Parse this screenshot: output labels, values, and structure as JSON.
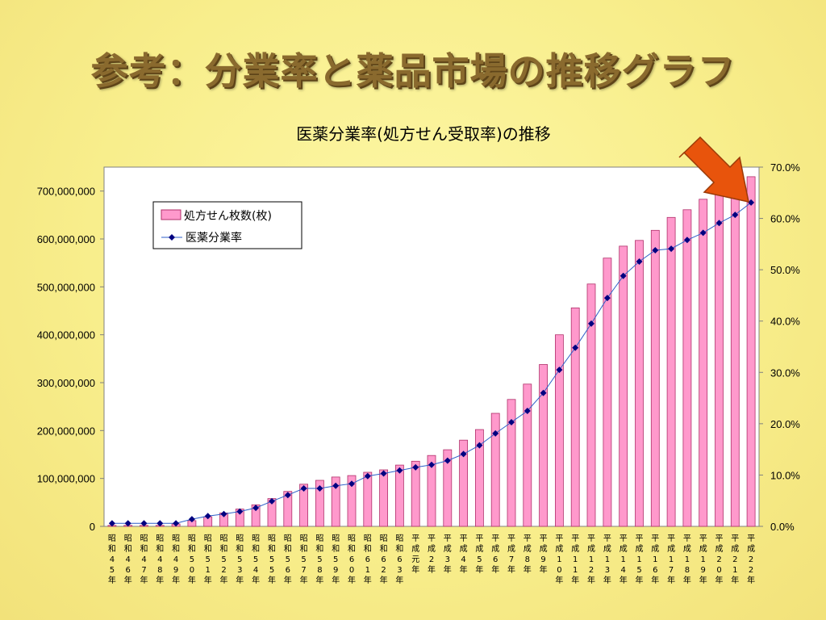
{
  "slide": {
    "title": "参考：分業率と薬品市場の推移グラフ"
  },
  "colors": {
    "bar_fill": "#ff99cc",
    "bar_stroke": "#b0306a",
    "line": "#2e5fc8",
    "marker": "#000080",
    "arrow": "#e8540c"
  },
  "chart_data": {
    "type": "bar",
    "title": "医薬分業率(処方せん受取率)の推移",
    "categories": [
      "昭和45年",
      "昭和46年",
      "昭和47年",
      "昭和48年",
      "昭和49年",
      "昭和50年",
      "昭和51年",
      "昭和52年",
      "昭和53年",
      "昭和54年",
      "昭和55年",
      "昭和56年",
      "昭和57年",
      "昭和58年",
      "昭和59年",
      "昭和60年",
      "昭和61年",
      "昭和62年",
      "昭和63年",
      "平成元年",
      "平成2年",
      "平成3年",
      "平成4年",
      "平成5年",
      "平成6年",
      "平成7年",
      "平成8年",
      "平成9年",
      "平成10年",
      "平成11年",
      "平成12年",
      "平成13年",
      "平成14年",
      "平成15年",
      "平成16年",
      "平成17年",
      "平成18年",
      "平成19年",
      "平成20年",
      "平成21年",
      "平成22年"
    ],
    "series": [
      {
        "name": "処方せん枚数(枚)",
        "type": "bar",
        "axis": "left",
        "values": [
          2000000,
          2000000,
          2000000,
          2000000,
          5000000,
          12000000,
          20000000,
          28000000,
          36000000,
          45000000,
          58000000,
          73000000,
          88000000,
          96000000,
          103000000,
          106000000,
          113000000,
          118000000,
          128000000,
          136000000,
          148000000,
          160000000,
          180000000,
          202000000,
          236000000,
          265000000,
          297000000,
          338000000,
          400000000,
          456000000,
          506000000,
          560000000,
          585000000,
          597000000,
          618000000,
          645000000,
          661000000,
          683000000,
          694000000,
          701000000,
          730000000
        ]
      },
      {
        "name": "医薬分業率",
        "type": "line",
        "axis": "right",
        "values": [
          0.6,
          0.6,
          0.6,
          0.6,
          0.6,
          1.4,
          2.0,
          2.4,
          2.9,
          3.6,
          4.9,
          6.1,
          7.4,
          7.4,
          7.9,
          8.3,
          9.8,
          10.3,
          10.9,
          11.5,
          12.0,
          12.8,
          14.1,
          15.8,
          18.1,
          20.3,
          22.5,
          26.0,
          30.5,
          34.8,
          39.5,
          44.5,
          48.8,
          51.6,
          53.8,
          54.1,
          55.8,
          57.2,
          59.1,
          60.7,
          63.1
        ]
      }
    ],
    "y_left": {
      "min": 0,
      "max": 750000000,
      "ticks": [
        "0",
        "100,000,000",
        "200,000,000",
        "300,000,000",
        "400,000,000",
        "500,000,000",
        "600,000,000",
        "700,000,000"
      ]
    },
    "y_right": {
      "min": 0,
      "max": 70,
      "ticks": [
        "0.0%",
        "10.0%",
        "20.0%",
        "30.0%",
        "40.0%",
        "50.0%",
        "60.0%",
        "70.0%"
      ]
    },
    "legend_position": "top-left",
    "grid": false
  }
}
